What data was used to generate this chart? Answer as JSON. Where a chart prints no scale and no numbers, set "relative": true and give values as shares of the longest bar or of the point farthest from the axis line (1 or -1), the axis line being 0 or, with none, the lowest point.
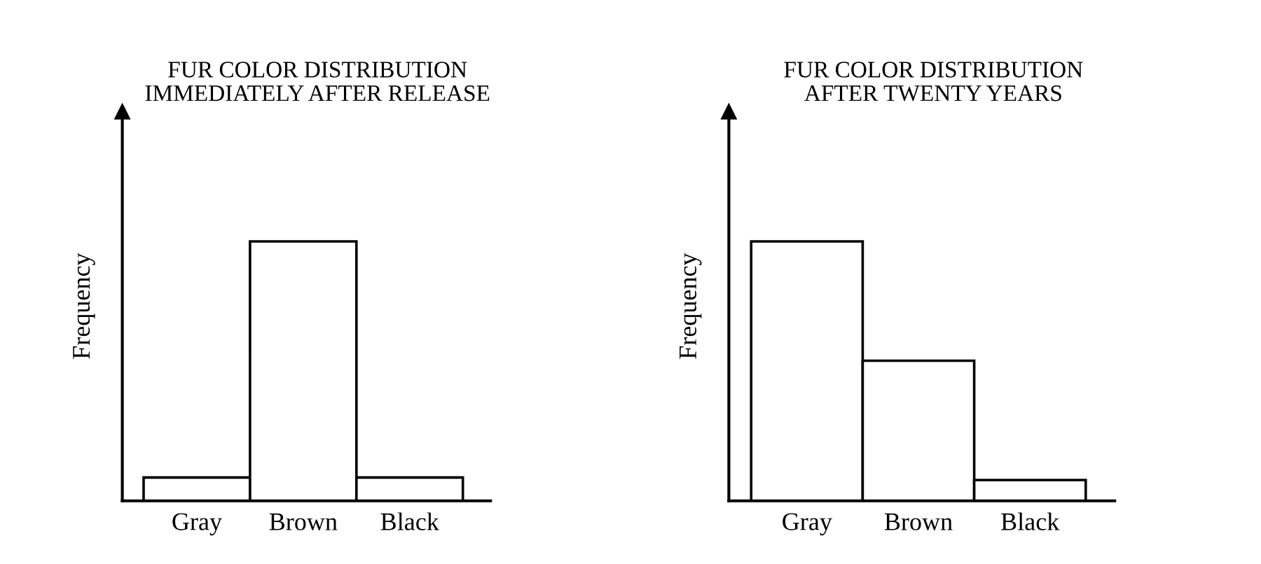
{
  "chart_data": [
    {
      "type": "bar",
      "title": "FUR COLOR DISTRIBUTION\nIMMEDIATELY AFTER RELEASE",
      "ylabel": "Frequency",
      "categories": [
        "Gray",
        "Brown",
        "Black"
      ],
      "values": [
        0.09,
        1,
        0.09
      ],
      "color": "#ffffff",
      "relative": true,
      "grid": false,
      "legend": false
    },
    {
      "type": "bar",
      "title": "FUR COLOR DISTRIBUTION\nAFTER TWENTY YEARS",
      "ylabel": "Frequency",
      "categories": [
        "Gray",
        "Brown",
        "Black"
      ],
      "values": [
        1,
        0.54,
        0.08
      ],
      "color": "#ffffff",
      "relative": true,
      "grid": false,
      "legend": false
    }
  ]
}
